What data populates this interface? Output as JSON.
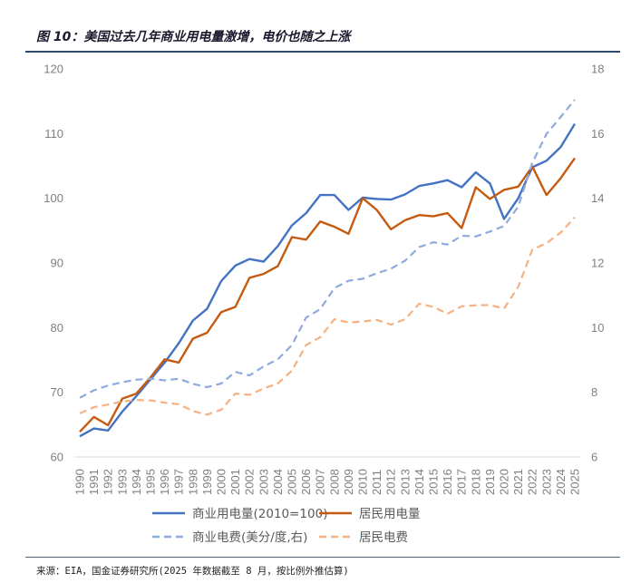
{
  "figure": {
    "title": "图 10：美国过去几年商业用电量激增，电价也随之上涨",
    "source": "来源：EIA，国金证券研究所(2025 年数据截至 8 月，按比例外推估算)"
  },
  "chart_data": {
    "type": "line",
    "title": "",
    "categories": [
      "1990",
      "1991",
      "1992",
      "1993",
      "1994",
      "1995",
      "1996",
      "1997",
      "1998",
      "1999",
      "2000",
      "2001",
      "2002",
      "2003",
      "2004",
      "2005",
      "2006",
      "2007",
      "2008",
      "2009",
      "2010",
      "2011",
      "2012",
      "2013",
      "2014",
      "2015",
      "2016",
      "2017",
      "2018",
      "2019",
      "2020",
      "2021",
      "2022",
      "2023",
      "2024",
      "2025"
    ],
    "y_left": {
      "min": 60,
      "max": 120,
      "ticks": [
        60,
        70,
        80,
        90,
        100,
        110,
        120
      ]
    },
    "y_right": {
      "min": 6,
      "max": 18,
      "ticks": [
        6,
        8,
        10,
        12,
        14,
        16,
        18
      ]
    },
    "grid": false,
    "legend_position": "bottom",
    "series": [
      {
        "name": "商业用电量(2010=100)",
        "axis": "left",
        "style": "solid",
        "color": "#4472c4",
        "values": [
          63.2,
          64.4,
          64.1,
          67.0,
          69.4,
          72.0,
          74.6,
          77.6,
          81.1,
          82.9,
          87.2,
          89.6,
          90.6,
          90.2,
          92.6,
          95.8,
          97.7,
          100.5,
          100.5,
          98.2,
          100.1,
          99.9,
          99.8,
          100.6,
          101.9,
          102.3,
          102.8,
          101.7,
          104.0,
          102.3,
          96.8,
          100.0,
          104.8,
          105.8,
          107.9,
          111.5
        ]
      },
      {
        "name": "居民用电量",
        "axis": "left",
        "style": "solid",
        "color": "#c55a11",
        "values": [
          63.9,
          66.2,
          64.9,
          69.0,
          69.8,
          72.3,
          75.1,
          74.6,
          78.3,
          79.2,
          82.4,
          83.2,
          87.7,
          88.3,
          89.5,
          94.0,
          93.6,
          96.4,
          95.6,
          94.5,
          100.0,
          98.2,
          95.2,
          96.6,
          97.4,
          97.2,
          97.7,
          95.4,
          101.7,
          99.9,
          101.3,
          101.8,
          104.9,
          100.5,
          103.1,
          106.2
        ]
      },
      {
        "name": "商业电费(美分/度,右)",
        "axis": "right",
        "style": "dashed",
        "color": "#8faadc",
        "values": [
          7.83,
          8.06,
          8.21,
          8.31,
          8.39,
          8.42,
          8.37,
          8.42,
          8.26,
          8.16,
          8.27,
          8.63,
          8.52,
          8.8,
          9.02,
          9.46,
          10.31,
          10.57,
          11.22,
          11.45,
          11.51,
          11.68,
          11.82,
          12.07,
          12.49,
          12.64,
          12.57,
          12.84,
          12.82,
          12.97,
          13.14,
          13.74,
          15.1,
          15.99,
          16.51,
          17.05
        ]
      },
      {
        "name": "居民电费",
        "axis": "right",
        "style": "dashed",
        "color": "#f4b183",
        "values": [
          7.35,
          7.54,
          7.62,
          7.72,
          7.76,
          7.75,
          7.68,
          7.63,
          7.42,
          7.31,
          7.46,
          7.96,
          7.92,
          8.12,
          8.27,
          8.67,
          9.46,
          9.7,
          10.26,
          10.16,
          10.19,
          10.24,
          10.09,
          10.26,
          10.74,
          10.64,
          10.43,
          10.66,
          10.69,
          10.7,
          10.59,
          11.26,
          12.41,
          12.61,
          12.94,
          13.41
        ]
      }
    ]
  }
}
